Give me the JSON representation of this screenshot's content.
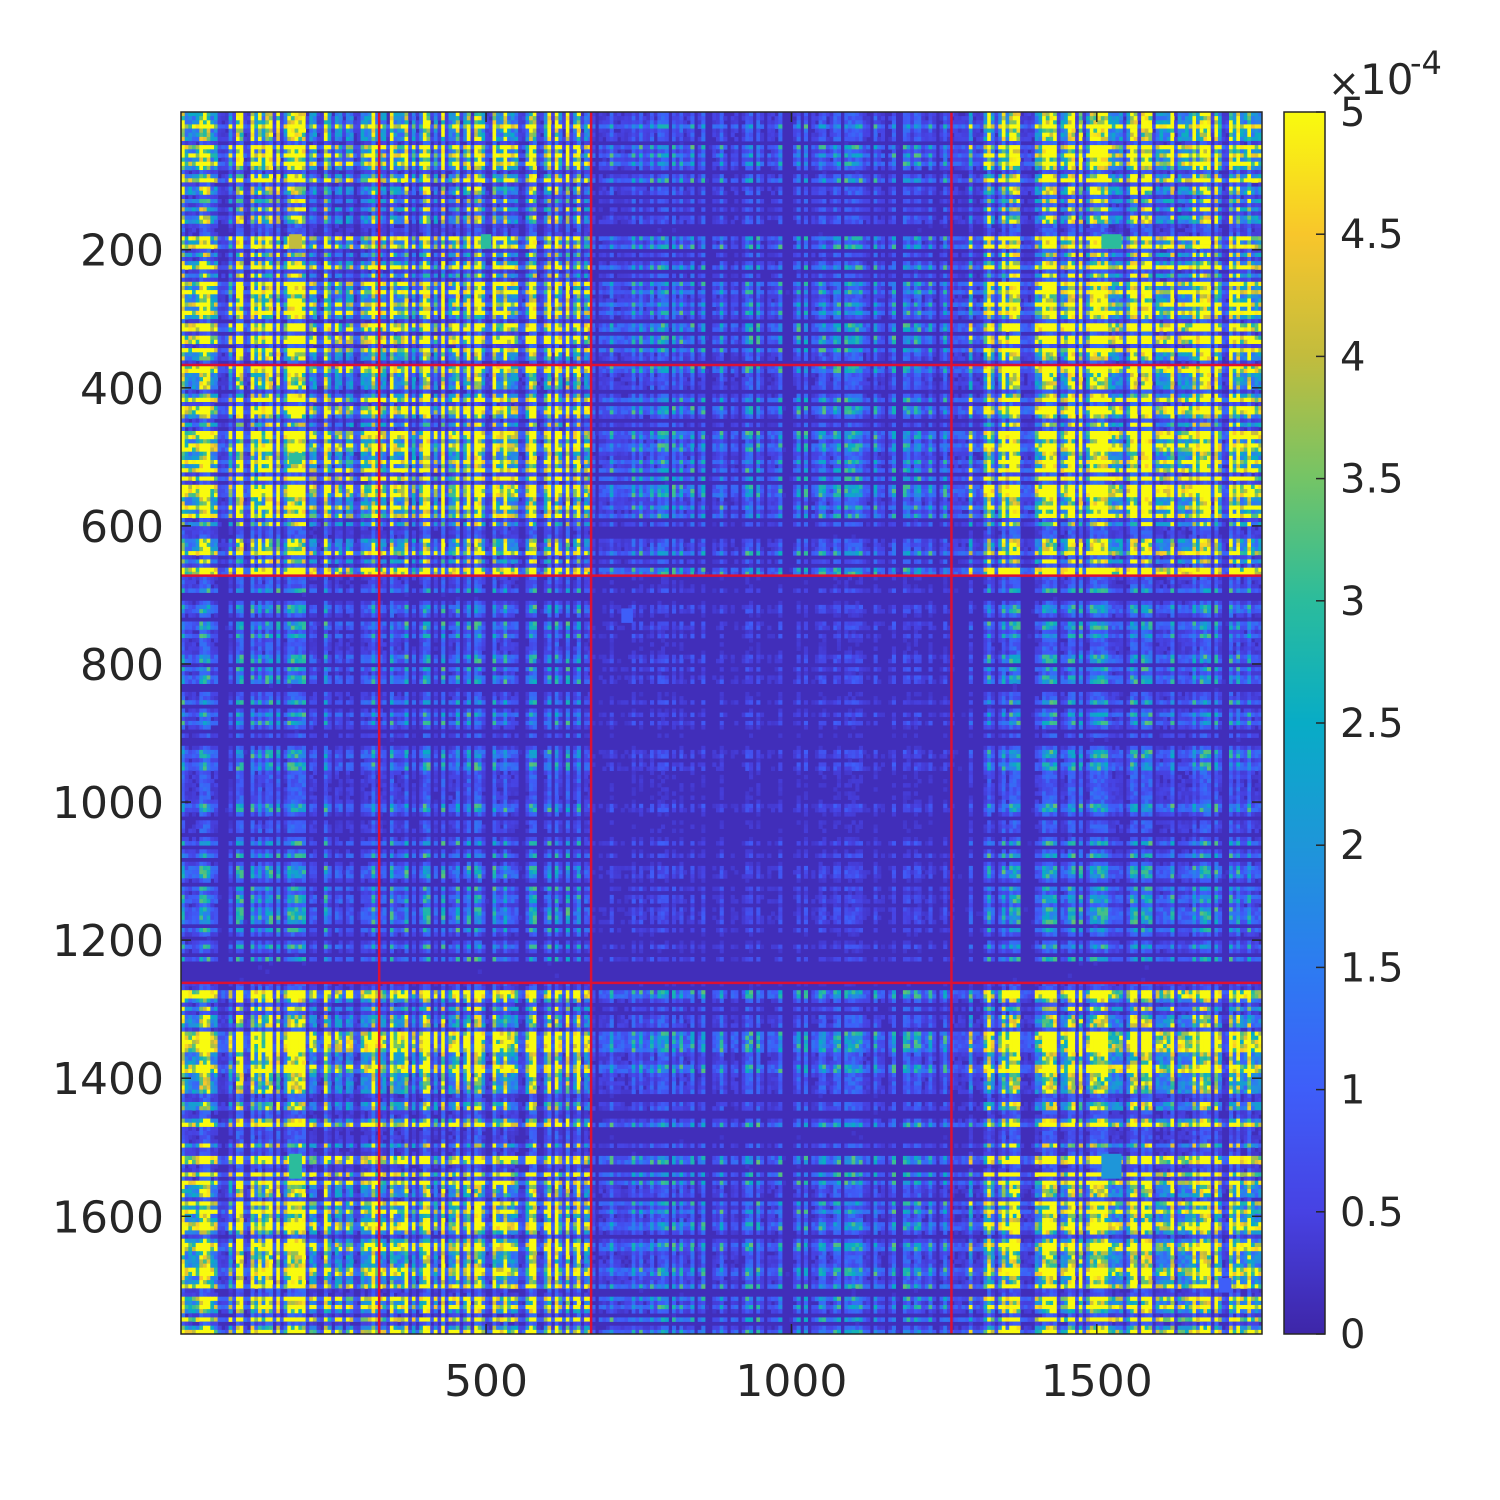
{
  "chart_data": {
    "type": "heatmap",
    "title": "",
    "xlabel": "",
    "ylabel": "",
    "matrix_size": 1770,
    "xlim": [
      0.5,
      1770.5
    ],
    "ylim": [
      0.5,
      1770.5
    ],
    "x_ticks": [
      500,
      1000,
      1500
    ],
    "y_ticks": [
      200,
      400,
      600,
      800,
      1000,
      1200,
      1400,
      1600
    ],
    "x_tick_labels": [
      "500",
      "1000",
      "1500"
    ],
    "y_tick_labels": [
      "200",
      "400",
      "600",
      "800",
      "1000",
      "1200",
      "1400",
      "1600"
    ],
    "colormap": "parula",
    "color_limits": [
      0,
      0.0005
    ],
    "colorbar": {
      "ticks": [
        0,
        0.5,
        1,
        1.5,
        2,
        2.5,
        3,
        3.5,
        4,
        4.5,
        5
      ],
      "tick_labels": [
        "0",
        "0.5",
        "1",
        "1.5",
        "2",
        "2.5",
        "3",
        "3.5",
        "4",
        "4.5",
        "5"
      ],
      "multiplier_base": "10",
      "multiplier_exp": "-4",
      "multiplier_symbol": "×"
    },
    "block_boundaries_x": [
      325,
      672,
      1262
    ],
    "block_boundaries_y": [
      367,
      672,
      1262
    ],
    "boundary_color": "#dd1133",
    "block_mean_values_1e4": {
      "group_A_range": [
        1,
        672
      ],
      "group_B_range": [
        673,
        1262
      ],
      "group_C_range": [
        1263,
        1770
      ],
      "A_A": 2.2,
      "A_B": 0.5,
      "A_C": 2.3,
      "B_A": 0.5,
      "B_B": 0.15,
      "B_C": 0.5,
      "C_A": 2.2,
      "C_B": 0.5,
      "C_C": 2.0
    },
    "highlight_blocks": [
      {
        "x": [
          178,
          198
        ],
        "y": [
          178,
          198
        ],
        "value_1e4": 4.0
      },
      {
        "x": [
          492,
          508
        ],
        "y": [
          178,
          198
        ],
        "value_1e4": 3.0
      },
      {
        "x": [
          1508,
          1540
        ],
        "y": [
          178,
          198
        ],
        "value_1e4": 3.0
      },
      {
        "x": [
          178,
          198
        ],
        "y": [
          495,
          510
        ],
        "value_1e4": 3.0
      },
      {
        "x": [
          178,
          198
        ],
        "y": [
          1510,
          1545
        ],
        "value_1e4": 3.0
      },
      {
        "x": [
          1508,
          1540
        ],
        "y": [
          1510,
          1545
        ],
        "value_1e4": 2.0
      },
      {
        "x": [
          722,
          740
        ],
        "y": [
          720,
          740
        ],
        "value_1e4": 1.0
      },
      {
        "x": [
          1700,
          1720
        ],
        "y": [
          1690,
          1710
        ],
        "value_1e4": 1.0
      }
    ],
    "colors": {
      "low": "#3e26a8",
      "high": "#f9fb0e",
      "frame": "#262626"
    }
  }
}
